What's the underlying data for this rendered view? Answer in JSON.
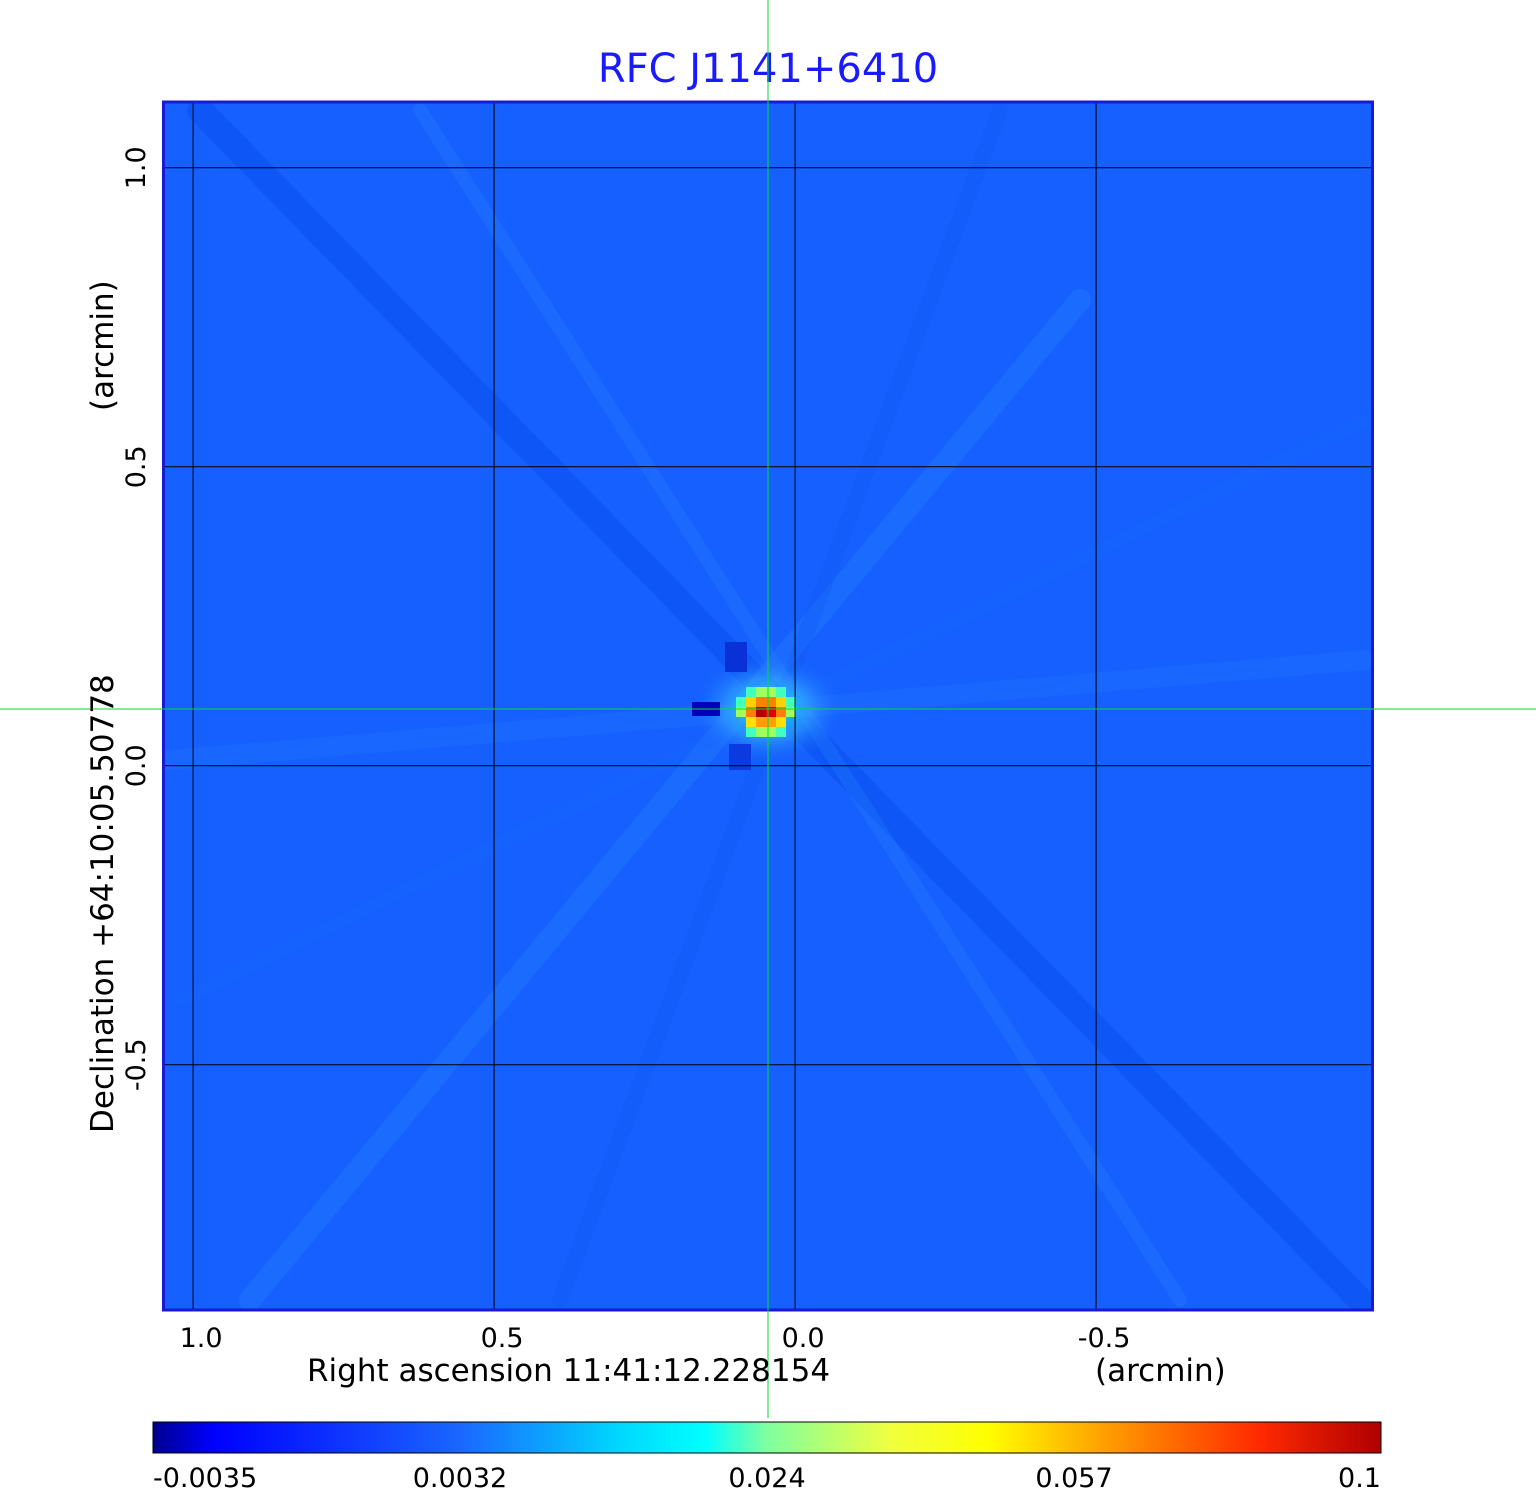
{
  "chart_data": {
    "type": "heatmap",
    "title": "RFC J1141+6410",
    "xlabel": "Right ascension  11:41:12.228154",
    "xunit": "(arcmin)",
    "ylabel": "Declination  +64:10:05.50778",
    "yunit": "(arcmin)",
    "xlim": [
      1.05,
      -0.96
    ],
    "ylim": [
      -0.91,
      1.11
    ],
    "x_ticks": [
      {
        "value": 1.0,
        "label": "1.0"
      },
      {
        "value": 0.5,
        "label": "0.5"
      },
      {
        "value": 0.0,
        "label": "0.0"
      },
      {
        "value": -0.5,
        "label": "-0.5"
      }
    ],
    "y_ticks": [
      {
        "value": 1.0,
        "label": "1.0"
      },
      {
        "value": 0.5,
        "label": "0.5"
      },
      {
        "value": 0.0,
        "label": "0.0"
      },
      {
        "value": -0.5,
        "label": "-0.5"
      }
    ],
    "grid": true,
    "crosshair": {
      "x": 0.045,
      "y": 0.095,
      "color": "#00dd33"
    },
    "source_peak": {
      "x": 0.045,
      "y": 0.095,
      "value": 0.1
    },
    "colorbar": {
      "range": [
        -0.0035,
        0.1
      ],
      "tick_labels": [
        "-0.0035",
        "0.0032",
        "0.024",
        "0.057",
        "0.1"
      ],
      "colormap": "jet"
    },
    "colors": {
      "title": "#1a1aff",
      "frame": "#1a1ad6",
      "background_field": "#1560ff",
      "grid": "#000000"
    }
  }
}
